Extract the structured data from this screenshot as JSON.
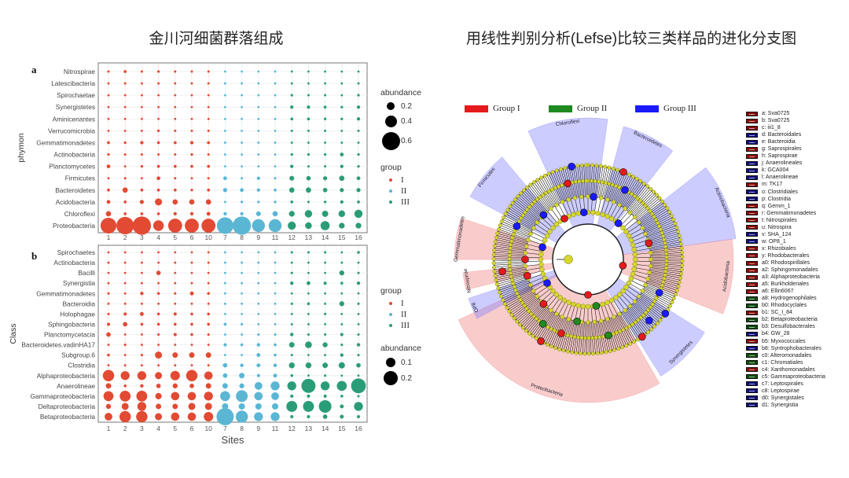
{
  "titles": {
    "left": "金川河细菌群落组成",
    "right": "用线性判别分析(Lefse)比较三类样品的进化分支图"
  },
  "colors": {
    "I": "#e24a33",
    "II": "#5bb6d4",
    "III": "#2a9d78"
  },
  "chart_data": [
    {
      "type": "bubble",
      "panel_label": "a",
      "ylabel": "phymon",
      "xlabel": "",
      "sites": [
        "1",
        "2",
        "3",
        "4",
        "5",
        "6",
        "10",
        "7",
        "8",
        "9",
        "11",
        "12",
        "13",
        "14",
        "15",
        "16"
      ],
      "site_groups": [
        "I",
        "I",
        "I",
        "I",
        "I",
        "I",
        "I",
        "II",
        "II",
        "II",
        "II",
        "III",
        "III",
        "III",
        "III",
        "III"
      ],
      "categories": [
        "Nitrospirae",
        "Latescibacteria",
        "Spirochaetae",
        "Synergistetes",
        "Aminicenantes",
        "Verrucomicrobia",
        "Gemmatimonadetes",
        "Actinobacteria",
        "Planctomycetes",
        "Firmicutes",
        "Bacteroidetes",
        "Acidobacteria",
        "Chloroflexi",
        "Proteobacteria"
      ],
      "values": [
        [
          0.01,
          0.015,
          0.01,
          0.012,
          0.01,
          0.01,
          0.01,
          0.004,
          0.004,
          0.004,
          0.004,
          0.008,
          0.008,
          0.007,
          0.007,
          0.008
        ],
        [
          0.008,
          0.01,
          0.008,
          0.01,
          0.008,
          0.008,
          0.008,
          0.004,
          0.005,
          0.005,
          0.005,
          0.008,
          0.008,
          0.008,
          0.008,
          0.01
        ],
        [
          0.008,
          0.008,
          0.008,
          0.008,
          0.008,
          0.008,
          0.008,
          0.006,
          0.006,
          0.008,
          0.006,
          0.012,
          0.01,
          0.01,
          0.008,
          0.012
        ],
        [
          0.006,
          0.006,
          0.006,
          0.006,
          0.006,
          0.006,
          0.006,
          0.005,
          0.005,
          0.005,
          0.005,
          0.02,
          0.02,
          0.015,
          0.012,
          0.02
        ],
        [
          0.006,
          0.006,
          0.006,
          0.006,
          0.006,
          0.006,
          0.006,
          0.005,
          0.005,
          0.005,
          0.005,
          0.015,
          0.015,
          0.012,
          0.012,
          0.02
        ],
        [
          0.008,
          0.008,
          0.008,
          0.012,
          0.01,
          0.01,
          0.01,
          0.004,
          0.005,
          0.005,
          0.005,
          0.01,
          0.01,
          0.01,
          0.008,
          0.01
        ],
        [
          0.015,
          0.012,
          0.02,
          0.015,
          0.015,
          0.02,
          0.015,
          0.004,
          0.004,
          0.004,
          0.004,
          0.008,
          0.008,
          0.006,
          0.006,
          0.006
        ],
        [
          0.012,
          0.01,
          0.01,
          0.01,
          0.01,
          0.012,
          0.01,
          0.005,
          0.006,
          0.008,
          0.006,
          0.012,
          0.012,
          0.012,
          0.025,
          0.012
        ],
        [
          0.025,
          0.008,
          0.012,
          0.015,
          0.015,
          0.015,
          0.015,
          0.005,
          0.006,
          0.006,
          0.006,
          0.02,
          0.01,
          0.01,
          0.02,
          0.012
        ],
        [
          0.008,
          0.01,
          0.008,
          0.025,
          0.01,
          0.008,
          0.01,
          0.025,
          0.01,
          0.02,
          0.01,
          0.04,
          0.035,
          0.03,
          0.05,
          0.025
        ],
        [
          0.015,
          0.05,
          0.015,
          0.015,
          0.015,
          0.012,
          0.015,
          0.03,
          0.025,
          0.02,
          0.015,
          0.05,
          0.05,
          0.035,
          0.03,
          0.03
        ],
        [
          0.025,
          0.015,
          0.03,
          0.09,
          0.05,
          0.05,
          0.05,
          0.008,
          0.012,
          0.012,
          0.012,
          0.015,
          0.01,
          0.012,
          0.02,
          0.015
        ],
        [
          0.05,
          0.015,
          0.015,
          0.015,
          0.02,
          0.02,
          0.025,
          0.02,
          0.02,
          0.04,
          0.05,
          0.06,
          0.1,
          0.07,
          0.08,
          0.12
        ],
        [
          0.45,
          0.55,
          0.6,
          0.2,
          0.35,
          0.35,
          0.35,
          0.5,
          0.6,
          0.3,
          0.3,
          0.12,
          0.08,
          0.15,
          0.06,
          0.06
        ]
      ],
      "size_legend": {
        "title": "abundance",
        "values": [
          "0.2",
          "0.4",
          "0.6"
        ]
      },
      "color_legend": {
        "title": "group",
        "entries": [
          "I",
          "II",
          "III"
        ]
      },
      "grid": true
    },
    {
      "type": "bubble",
      "panel_label": "b",
      "ylabel": "Class",
      "xlabel": "Sites",
      "sites": [
        "1",
        "2",
        "3",
        "4",
        "5",
        "6",
        "10",
        "7",
        "8",
        "9",
        "11",
        "12",
        "13",
        "14",
        "15",
        "16"
      ],
      "site_groups": [
        "I",
        "I",
        "I",
        "I",
        "I",
        "I",
        "I",
        "II",
        "II",
        "II",
        "II",
        "III",
        "III",
        "III",
        "III",
        "III"
      ],
      "categories": [
        "Spirochaetes",
        "Actinobacteria",
        "Bacilli",
        "Synergistia",
        "Gemmatimonadetes",
        "Bacteroidia",
        "Holophagae",
        "Sphingobacteria",
        "Planctomycetacia",
        "Bacteroidetes.vadinHA17",
        "Subgroup.6",
        "Clostridia",
        "Alphaproteobacteria",
        "Anaerolineae",
        "Gammaproteobacteria",
        "Deltaproteobacteria",
        "Betaproteobacteria"
      ],
      "values": [
        [
          0.003,
          0.003,
          0.003,
          0.003,
          0.003,
          0.003,
          0.003,
          0.003,
          0.003,
          0.004,
          0.004,
          0.006,
          0.006,
          0.006,
          0.005,
          0.008
        ],
        [
          0.005,
          0.004,
          0.004,
          0.004,
          0.004,
          0.004,
          0.004,
          0.003,
          0.003,
          0.003,
          0.003,
          0.004,
          0.004,
          0.004,
          0.005,
          0.004
        ],
        [
          0.003,
          0.002,
          0.002,
          0.02,
          0.003,
          0.003,
          0.003,
          0.002,
          0.002,
          0.003,
          0.003,
          0.006,
          0.005,
          0.004,
          0.025,
          0.006
        ],
        [
          0.003,
          0.002,
          0.002,
          0.002,
          0.002,
          0.002,
          0.002,
          0.002,
          0.002,
          0.003,
          0.003,
          0.012,
          0.015,
          0.01,
          0.008,
          0.012
        ],
        [
          0.006,
          0.005,
          0.012,
          0.008,
          0.006,
          0.015,
          0.008,
          0.002,
          0.002,
          0.002,
          0.002,
          0.004,
          0.002,
          0.002,
          0.003,
          0.002
        ],
        [
          0.003,
          0.003,
          0.003,
          0.003,
          0.003,
          0.003,
          0.003,
          0.005,
          0.004,
          0.003,
          0.003,
          0.006,
          0.008,
          0.005,
          0.025,
          0.006
        ],
        [
          0.006,
          0.01,
          0.015,
          0.008,
          0.01,
          0.008,
          0.008,
          0.003,
          0.003,
          0.003,
          0.003,
          0.005,
          0.005,
          0.006,
          0.003,
          0.005
        ],
        [
          0.01,
          0.02,
          0.008,
          0.008,
          0.008,
          0.008,
          0.008,
          0.008,
          0.006,
          0.004,
          0.004,
          0.005,
          0.005,
          0.004,
          0.003,
          0.004
        ],
        [
          0.02,
          0.004,
          0.004,
          0.006,
          0.01,
          0.008,
          0.006,
          0.005,
          0.005,
          0.006,
          0.006,
          0.012,
          0.006,
          0.006,
          0.01,
          0.006
        ],
        [
          0.004,
          0.006,
          0.004,
          0.003,
          0.004,
          0.003,
          0.004,
          0.01,
          0.008,
          0.012,
          0.008,
          0.03,
          0.045,
          0.025,
          0.006,
          0.012
        ],
        [
          0.008,
          0.004,
          0.006,
          0.05,
          0.03,
          0.03,
          0.03,
          0.004,
          0.004,
          0.015,
          0.008,
          0.006,
          0.004,
          0.005,
          0.012,
          0.006
        ],
        [
          0.004,
          0.005,
          0.004,
          0.005,
          0.005,
          0.004,
          0.005,
          0.02,
          0.012,
          0.015,
          0.012,
          0.035,
          0.035,
          0.03,
          0.04,
          0.02
        ],
        [
          0.13,
          0.08,
          0.08,
          0.05,
          0.09,
          0.13,
          0.07,
          0.02,
          0.03,
          0.01,
          0.015,
          0.008,
          0.004,
          0.006,
          0.005,
          0.005
        ],
        [
          0.03,
          0.008,
          0.012,
          0.02,
          0.025,
          0.02,
          0.03,
          0.03,
          0.025,
          0.06,
          0.08,
          0.08,
          0.2,
          0.08,
          0.1,
          0.22
        ],
        [
          0.1,
          0.12,
          0.12,
          0.04,
          0.07,
          0.07,
          0.08,
          0.1,
          0.14,
          0.07,
          0.06,
          0.01,
          0.01,
          0.01,
          0.008,
          0.006
        ],
        [
          0.025,
          0.05,
          0.08,
          0.03,
          0.03,
          0.05,
          0.05,
          0.04,
          0.04,
          0.04,
          0.04,
          0.12,
          0.12,
          0.16,
          0.015,
          0.08
        ],
        [
          0.06,
          0.13,
          0.13,
          0.05,
          0.07,
          0.07,
          0.09,
          0.3,
          0.15,
          0.08,
          0.08,
          0.01,
          0.01,
          0.02,
          0.015,
          0.01
        ]
      ],
      "size_legend": {
        "title": "abundance",
        "values": [
          "0.1",
          "0.2"
        ]
      },
      "color_legend": {
        "title": "group",
        "entries": [
          "I",
          "II",
          "III"
        ]
      },
      "grid": true
    }
  ],
  "cladogram": {
    "group_legend": [
      {
        "label": "Group I",
        "color": "#e41a1c"
      },
      {
        "label": "Group II",
        "color": "#1f8a1f"
      },
      {
        "label": "Group III",
        "color": "#1a1aff"
      }
    ],
    "clades": [
      {
        "label": "Chloroflexi",
        "group": "III"
      },
      {
        "label": "Bacteroidetes",
        "group": "III"
      },
      {
        "label": "Actinobacteria",
        "group": "III"
      },
      {
        "label": "Acidobacteria",
        "group": "I"
      },
      {
        "label": "Synergistetes",
        "group": "III"
      },
      {
        "label": "Proteobacteria",
        "group": "I"
      },
      {
        "label": "OP8",
        "group": "III"
      },
      {
        "label": "Nitrospirae",
        "group": "I"
      },
      {
        "label": "Gemmatimonadetes",
        "group": "I"
      },
      {
        "label": "Firmicutes",
        "group": "III"
      }
    ],
    "legend": [
      {
        "label": "a: Sva0725",
        "group": "I"
      },
      {
        "label": "b: Sva0725",
        "group": "I"
      },
      {
        "label": "c: iii1_8",
        "group": "I"
      },
      {
        "label": "d: Bacteroidales",
        "group": "III"
      },
      {
        "label": "e: Bacteroidia",
        "group": "III"
      },
      {
        "label": "g: Saprospirales",
        "group": "I"
      },
      {
        "label": "h: Saprospirae",
        "group": "I"
      },
      {
        "label": "j: Anaerolineales",
        "group": "III"
      },
      {
        "label": "k: GCA004",
        "group": "III"
      },
      {
        "label": "l: Anaerolineae",
        "group": "III"
      },
      {
        "label": "m: TK17",
        "group": "I"
      },
      {
        "label": "o: Clostridiales",
        "group": "III"
      },
      {
        "label": "p: Clostridia",
        "group": "III"
      },
      {
        "label": "q: Gemm_1",
        "group": "I"
      },
      {
        "label": "r: Gemmatimonadetes",
        "group": "I"
      },
      {
        "label": "t: Nitrospirales",
        "group": "I"
      },
      {
        "label": "u: Nitrospira",
        "group": "I"
      },
      {
        "label": "v: SHA_124",
        "group": "III"
      },
      {
        "label": "w: OP8_1",
        "group": "III"
      },
      {
        "label": "x: Rhizobiales",
        "group": "I"
      },
      {
        "label": "y: Rhodobacterales",
        "group": "I"
      },
      {
        "label": "a0: Rhodospirillales",
        "group": "I"
      },
      {
        "label": "a2: Sphingomonadales",
        "group": "I"
      },
      {
        "label": "a3: Alphaproteobacteria",
        "group": "I"
      },
      {
        "label": "a5: Burkholderiales",
        "group": "I"
      },
      {
        "label": "a6: Ellin6067",
        "group": "I"
      },
      {
        "label": "a8: Hydrogenophilales",
        "group": "II"
      },
      {
        "label": "b0: Rhodocyclales",
        "group": "II"
      },
      {
        "label": "b1: SC_I_84",
        "group": "I"
      },
      {
        "label": "b2: Betaproteobacteria",
        "group": "II"
      },
      {
        "label": "b3: Desulfobacterales",
        "group": "II"
      },
      {
        "label": "b4: GW_28",
        "group": "III"
      },
      {
        "label": "b5: Myxococcales",
        "group": "I"
      },
      {
        "label": "b8: Syntrophobacterales",
        "group": "III"
      },
      {
        "label": "c0: Alteromonadales",
        "group": "II"
      },
      {
        "label": "c1: Chromatiales",
        "group": "II"
      },
      {
        "label": "c4: Xanthomonadales",
        "group": "I"
      },
      {
        "label": "c5: Gammaproteobacteria",
        "group": "II"
      },
      {
        "label": "c7: Leptospirales",
        "group": "III"
      },
      {
        "label": "c8: Leptospirae",
        "group": "III"
      },
      {
        "label": "d0: Synergistales",
        "group": "III"
      },
      {
        "label": "d1: Synergistia",
        "group": "III"
      }
    ],
    "swatch_colors": {
      "I": "#8b0a0a",
      "II": "#0d4d0d",
      "III": "#10107a"
    }
  }
}
